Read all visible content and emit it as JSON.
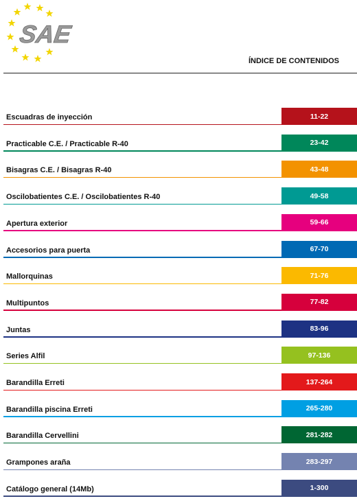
{
  "header": {
    "logo": "SAE",
    "title": "ÍNDICE DE CONTENIDOS"
  },
  "items": [
    {
      "label": "Escuadras de inyección",
      "pages": "11-22",
      "color": "#b5121b"
    },
    {
      "label": "Practicable C.E. / Practicable R-40",
      "pages": "23-42",
      "color": "#00875a"
    },
    {
      "label": "Bisagras C.E. / Bisagras R-40",
      "pages": "43-48",
      "color": "#f39200"
    },
    {
      "label": "Oscilobatientes C.E. / Oscilobatientes R-40",
      "pages": "49-58",
      "color": "#009a93"
    },
    {
      "label": "Apertura exterior",
      "pages": "59-66",
      "color": "#e6007e"
    },
    {
      "label": "Accesorios para puerta",
      "pages": "67-70",
      "color": "#0069b4"
    },
    {
      "label": "Mallorquinas",
      "pages": "71-76",
      "color": "#fbb900"
    },
    {
      "label": "Multipuntos",
      "pages": "77-82",
      "color": "#d6003c"
    },
    {
      "label": "Juntas",
      "pages": "83-96",
      "color": "#1d3283"
    },
    {
      "label": "Series Alfil",
      "pages": "97-136",
      "color": "#95c11f"
    },
    {
      "label": "Barandilla Erreti",
      "pages": "137-264",
      "color": "#e3191b"
    },
    {
      "label": "Barandilla piscina Erreti",
      "pages": "265-280",
      "color": "#009fe3"
    },
    {
      "label": "Barandilla Cervellini",
      "pages": "281-282",
      "color": "#006633"
    },
    {
      "label": "Grampones araña",
      "pages": "283-297",
      "color": "#7483b0"
    },
    {
      "label": "Catálogo general  (14Mb)",
      "pages": "1-300",
      "color": "#3c4b80"
    }
  ]
}
